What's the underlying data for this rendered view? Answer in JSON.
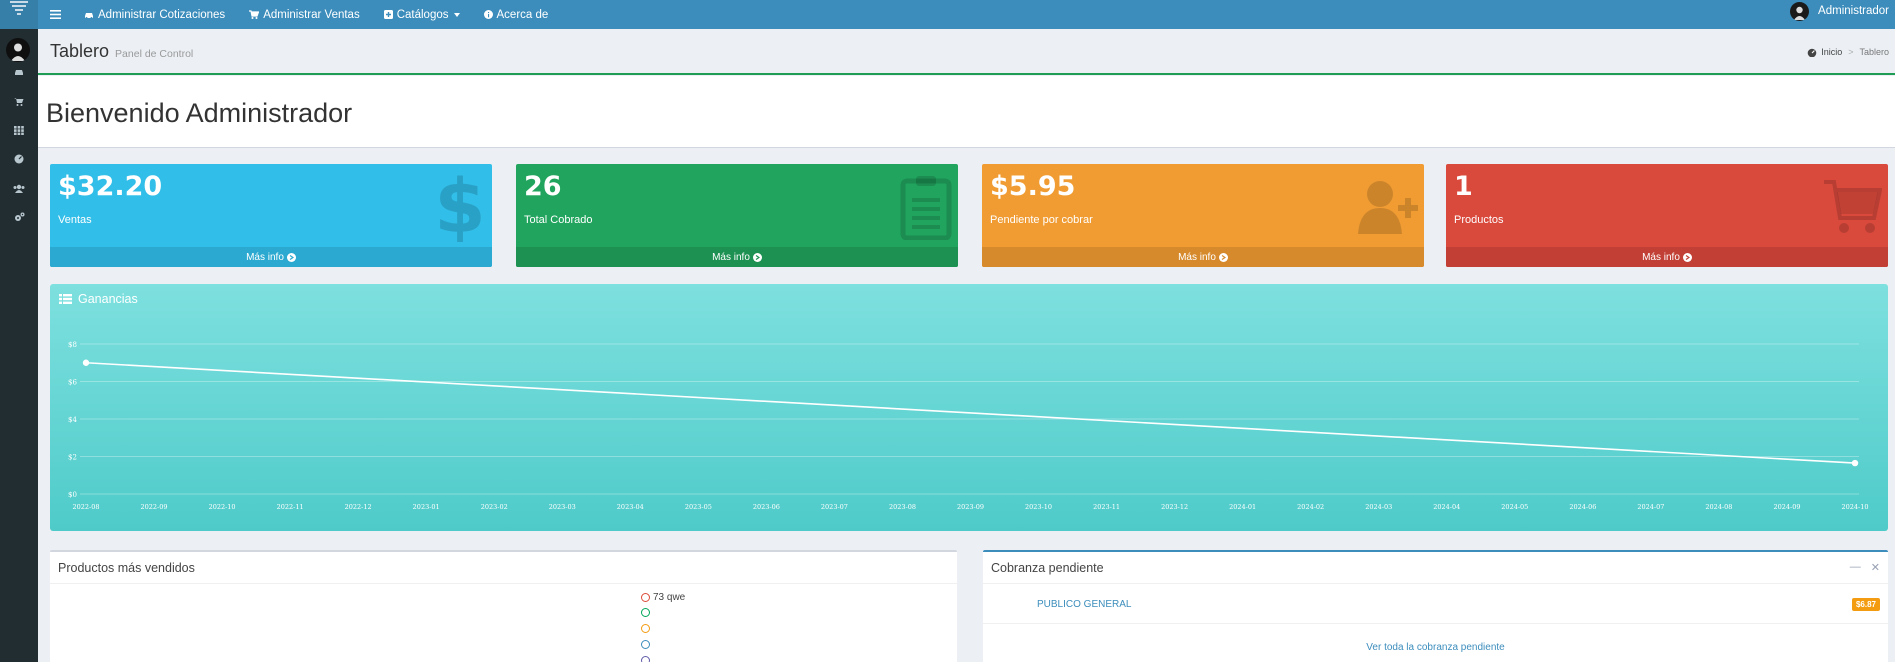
{
  "nav": {
    "items": [
      {
        "label": "Administrar Cotizaciones",
        "icon": "car-icon"
      },
      {
        "label": "Administrar Ventas",
        "icon": "cart-icon"
      },
      {
        "label": "Catálogos",
        "icon": "plus-square-icon"
      },
      {
        "label": "Acerca de",
        "icon": "info-circle-icon"
      }
    ],
    "user": "Administrador"
  },
  "sidebar": {
    "icons": [
      "car-icon",
      "cart-icon",
      "grid-icon",
      "dashboard-icon",
      "users-icon",
      "cogs-icon"
    ]
  },
  "header": {
    "title": "Tablero",
    "subtitle": "Panel de Control",
    "breadcrumb": [
      "Inicio",
      "Tablero"
    ]
  },
  "welcome": "Bienvenido Administrador",
  "boxes": [
    {
      "value": "$32.20",
      "label": "Ventas",
      "link": "Más info",
      "color": "#31bee9",
      "footer_color": "#2ba9d0",
      "icon": "dollar-icon"
    },
    {
      "value": "26",
      "label": "Total Cobrado",
      "link": "Más info",
      "color": "#21a55e",
      "footer_color": "#1d9152",
      "icon": "clipboard-icon"
    },
    {
      "value": "$5.95",
      "label": "Pendiente por cobrar",
      "link": "Más info",
      "color": "#f09c33",
      "footer_color": "#d68a2c",
      "icon": "user-plus-icon"
    },
    {
      "value": "1",
      "label": "Productos",
      "link": "Más info",
      "color": "#d9493c",
      "footer_color": "#c13f34",
      "icon": "shopping-cart-icon"
    }
  ],
  "chart": {
    "title": "Ganancias"
  },
  "chart_data": {
    "type": "line",
    "title": "Ganancias",
    "x": [
      "2022-08",
      "2022-09",
      "2022-10",
      "2022-11",
      "2022-12",
      "2023-01",
      "2023-02",
      "2023-03",
      "2023-04",
      "2023-05",
      "2023-06",
      "2023-07",
      "2023-08",
      "2023-09",
      "2023-10",
      "2023-11",
      "2023-12",
      "2024-01",
      "2024-02",
      "2024-03",
      "2024-04",
      "2024-05",
      "2024-06",
      "2024-07",
      "2024-08",
      "2024-09",
      "2024-10"
    ],
    "points": [
      {
        "x": "2022-08",
        "y": 7.0
      },
      {
        "x": "2024-10",
        "y": 1.65
      }
    ],
    "yticks": [
      "$0",
      "$2",
      "$4",
      "$6",
      "$8"
    ],
    "ylim": [
      0,
      8
    ],
    "grid": true,
    "line_color": "#ffffff"
  },
  "top_products": {
    "title": "Productos más vendidos",
    "legend": [
      {
        "label": "73 qwe",
        "color": "#dd4b39"
      },
      {
        "label": "",
        "color": "#00a65a"
      },
      {
        "label": "",
        "color": "#f39c12"
      },
      {
        "label": "",
        "color": "#3c8dbc"
      },
      {
        "label": "",
        "color": "#605ca8"
      }
    ]
  },
  "pending": {
    "title": "Cobranza pendiente",
    "rows": [
      {
        "name": "PUBLICO GENERAL",
        "amount": "$6.87"
      }
    ],
    "view_all": "Ver toda la cobranza pendiente"
  }
}
